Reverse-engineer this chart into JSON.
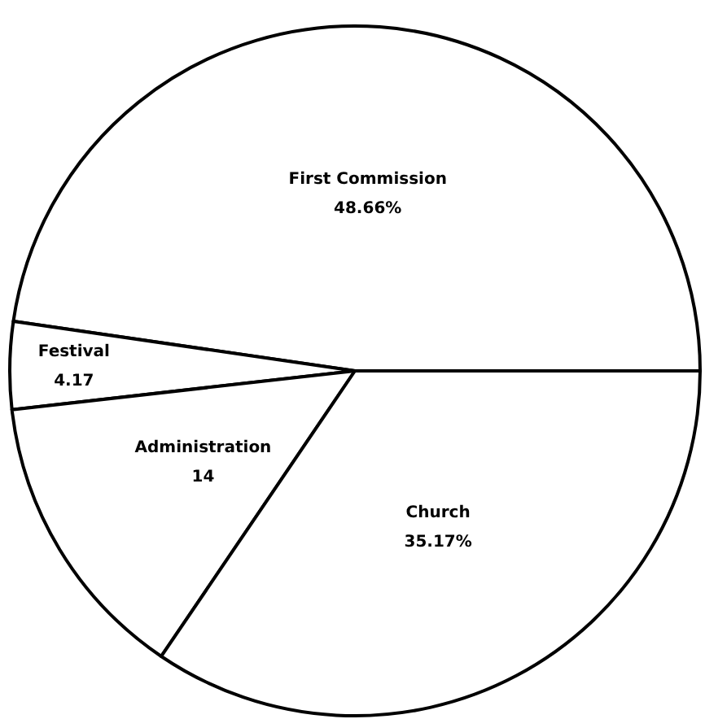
{
  "chart_data": {
    "type": "pie",
    "categories": [
      "First Commission",
      "Festival",
      "Administration",
      "Church"
    ],
    "values": [
      48.66,
      4.17,
      14,
      35.17
    ],
    "value_labels": [
      "48.66%",
      "4.17",
      "14",
      "35.17%"
    ],
    "colors": [
      "#ffffff",
      "#ffffff",
      "#ffffff",
      "#ffffff"
    ],
    "legend": false
  }
}
